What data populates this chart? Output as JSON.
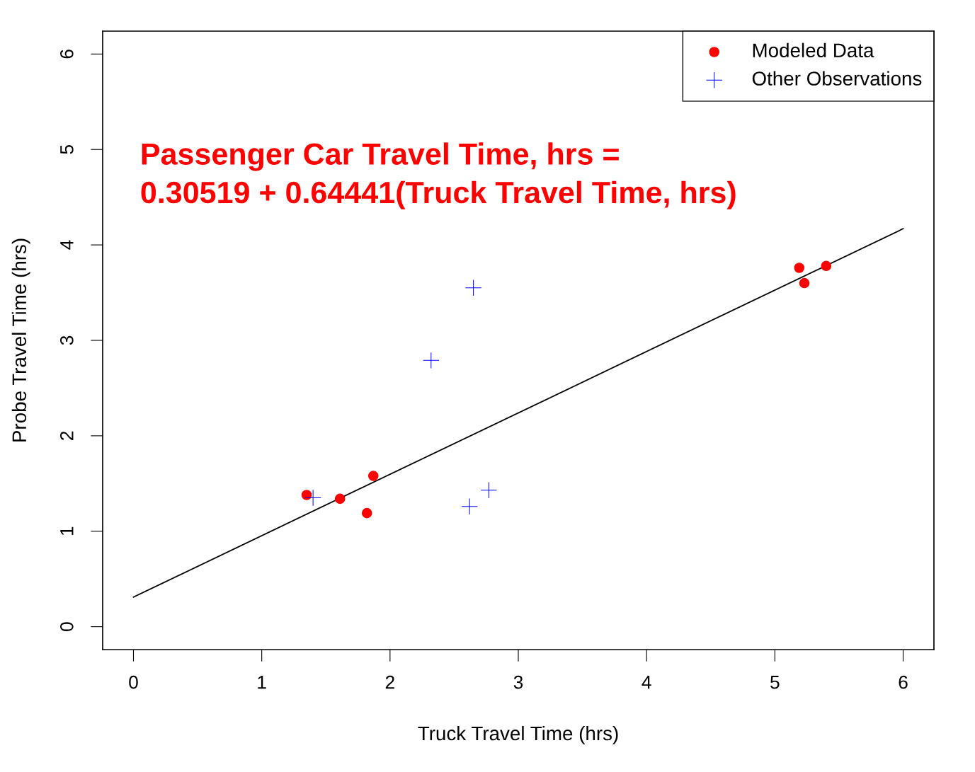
{
  "chart_data": {
    "type": "scatter",
    "xlabel": "Truck Travel Time (hrs)",
    "ylabel": "Probe Travel Time (hrs)",
    "xlim": [
      -0.24,
      6.24
    ],
    "ylim": [
      -0.24,
      6.24
    ],
    "xticks": [
      0,
      1,
      2,
      3,
      4,
      5,
      6
    ],
    "yticks": [
      0,
      1,
      2,
      3,
      4,
      5,
      6
    ],
    "grid": false,
    "legend": "top right",
    "annotations": [
      "Passenger Car Travel Time, hrs =\n0.30519 + 0.64441(Truck Travel Time, hrs)"
    ],
    "series": [
      {
        "name": "Modeled Data",
        "color": "#ff0000",
        "marker": "circle",
        "x": [
          1.35,
          1.61,
          1.87,
          1.82,
          5.19,
          5.23,
          5.4
        ],
        "values": [
          1.38,
          1.34,
          1.58,
          1.19,
          3.76,
          3.6,
          3.78
        ]
      },
      {
        "name": "Other Observations",
        "color": "#0000ff",
        "marker": "cross",
        "x": [
          1.4,
          2.65,
          2.32,
          2.62,
          2.77
        ],
        "values": [
          1.35,
          3.55,
          2.79,
          1.26,
          1.43
        ]
      },
      {
        "type": "line",
        "color": "#000000",
        "marker": "none",
        "x": [
          0,
          6
        ],
        "values": [
          0.31,
          4.17
        ]
      }
    ]
  }
}
